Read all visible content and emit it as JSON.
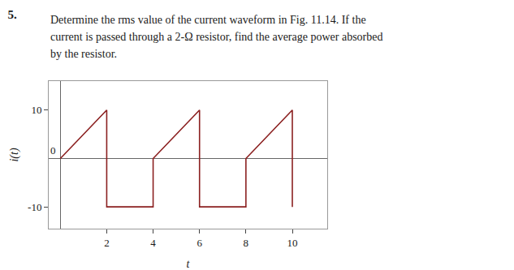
{
  "chart_data": {
    "type": "line",
    "title": "5.",
    "subtitle": [
      "Determine the rms value of the current waveform in Fig. 11.14. If the",
      "current is passed through a 2-Ω resistor, find the average power absorbed",
      "by the resistor."
    ],
    "x": [
      0,
      2,
      2,
      4,
      4,
      6,
      6,
      8,
      8,
      10,
      10
    ],
    "values": [
      0,
      10,
      -10,
      -10,
      0,
      10,
      -10,
      -10,
      0,
      10,
      -10
    ],
    "color": "#8b2020",
    "xlabel": "t",
    "ylabel": "i(t)",
    "xlim": [
      -0.5,
      11.5
    ],
    "ylim": [
      -14.5,
      16
    ],
    "xticks": [
      2,
      4,
      6,
      8,
      10
    ],
    "yticks": [
      -10,
      10
    ],
    "annotations": [
      "0"
    ],
    "grid": false
  }
}
